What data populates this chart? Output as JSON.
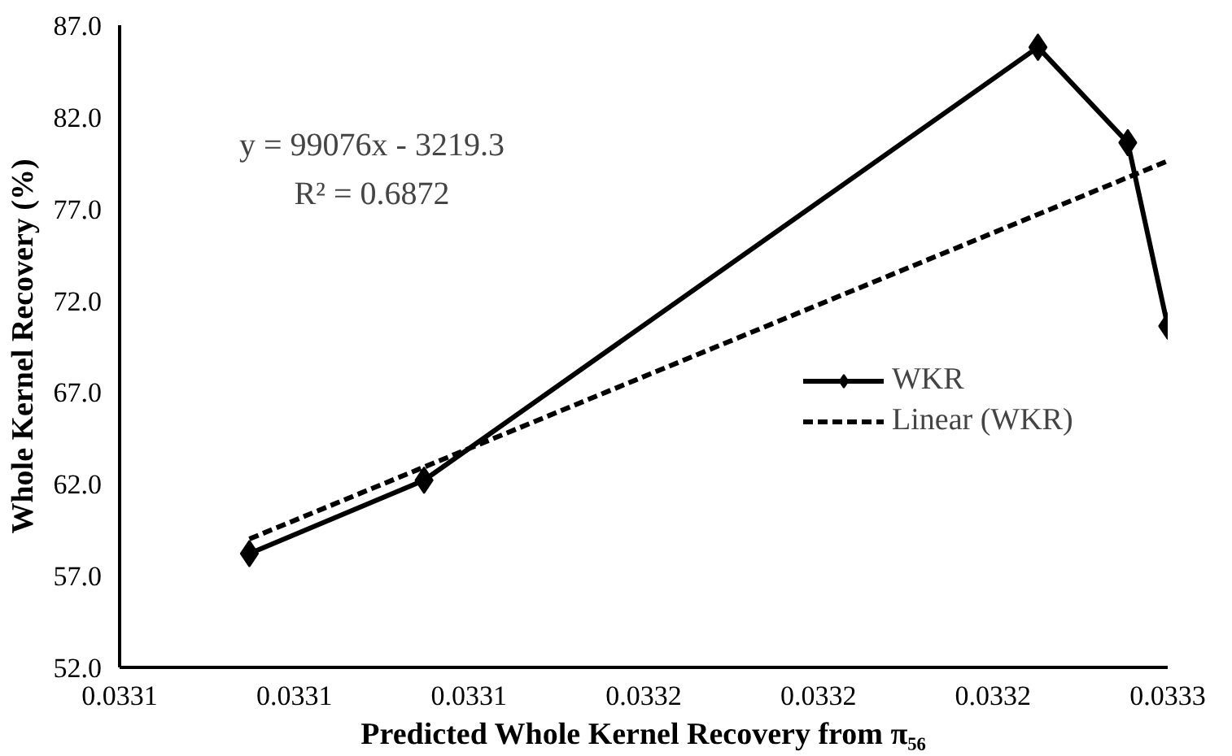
{
  "chart_data": {
    "type": "line",
    "xlabel": "Predicted Whole Kernel Recovery from π₅₆",
    "ylabel": "Whole Kernel Recovery (%)",
    "xlim": [
      0.03306,
      0.03327
    ],
    "ylim": [
      52.0,
      87.0
    ],
    "xticks": [
      {
        "value": 0.03306,
        "label": "0.0331"
      },
      {
        "value": 0.033095,
        "label": "0.0331"
      },
      {
        "value": 0.03313,
        "label": "0.0331"
      },
      {
        "value": 0.033165,
        "label": "0.0332"
      },
      {
        "value": 0.0332,
        "label": "0.0332"
      },
      {
        "value": 0.033235,
        "label": "0.0332"
      },
      {
        "value": 0.03327,
        "label": "0.0333"
      }
    ],
    "yticks": [
      {
        "value": 52,
        "label": "52.0"
      },
      {
        "value": 57,
        "label": "57.0"
      },
      {
        "value": 62,
        "label": "62.0"
      },
      {
        "value": 67,
        "label": "67.0"
      },
      {
        "value": 72,
        "label": "72.0"
      },
      {
        "value": 77,
        "label": "77.0"
      },
      {
        "value": 82,
        "label": "82.0"
      },
      {
        "value": 87,
        "label": "87.0"
      }
    ],
    "series": [
      {
        "name": "WKR",
        "color": "#000000",
        "marker": "diamond",
        "line_style": "solid",
        "x": [
          0.033086,
          0.033121,
          0.033244,
          0.033262,
          0.03327
        ],
        "values": [
          58.2,
          62.2,
          85.8,
          80.6,
          70.6
        ]
      },
      {
        "name": "Linear (WKR)",
        "color": "#000000",
        "marker": "none",
        "line_style": "dashed",
        "x": [
          0.033086,
          0.03327
        ],
        "values": [
          59.0,
          79.6
        ]
      }
    ],
    "annotations": [
      "y = 99076x - 3219.3",
      "R² = 0.6872"
    ],
    "grid": false,
    "legend": "right"
  }
}
